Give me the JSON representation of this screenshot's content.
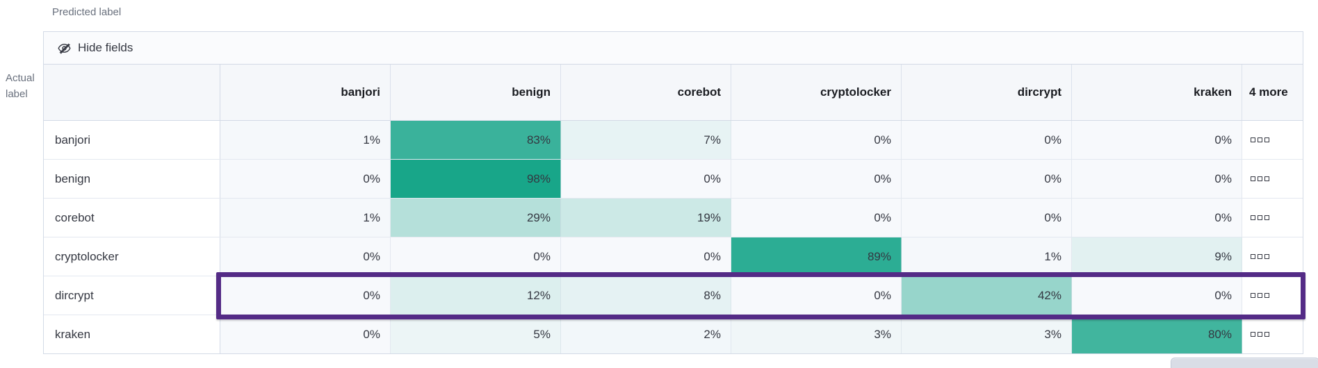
{
  "axes": {
    "predicted_label": "Predicted label",
    "actual_label": "Actual label"
  },
  "toolbar": {
    "hide_fields_label": "Hide fields",
    "hide_fields_icon": "eye-closed-icon"
  },
  "chart_data": {
    "type": "heatmap",
    "title": "Confusion matrix: actual label vs predicted label",
    "columns": [
      "banjori",
      "benign",
      "corebot",
      "cryptolocker",
      "dircrypt",
      "kraken"
    ],
    "extra_column_label": "4 more",
    "rows": [
      {
        "label": "banjori",
        "values": [
          1,
          83,
          7,
          0,
          0,
          0
        ],
        "highlighted": false
      },
      {
        "label": "benign",
        "values": [
          0,
          98,
          0,
          0,
          0,
          0
        ],
        "highlighted": false
      },
      {
        "label": "corebot",
        "values": [
          1,
          29,
          19,
          0,
          0,
          0
        ],
        "highlighted": false
      },
      {
        "label": "cryptolocker",
        "values": [
          0,
          0,
          0,
          89,
          1,
          9
        ],
        "highlighted": false
      },
      {
        "label": "dircrypt",
        "values": [
          0,
          12,
          8,
          0,
          42,
          0
        ],
        "highlighted": true
      },
      {
        "label": "kraken",
        "values": [
          0,
          5,
          2,
          3,
          3,
          80
        ],
        "highlighted": false
      }
    ],
    "value_suffix": "%",
    "heat_scale": {
      "low": "#f7f9fc",
      "high": "#13a487"
    },
    "highlight_color": "#542b86",
    "more_icon": "boxes-horizontal-icon",
    "legend_position": "none",
    "grid": true
  }
}
